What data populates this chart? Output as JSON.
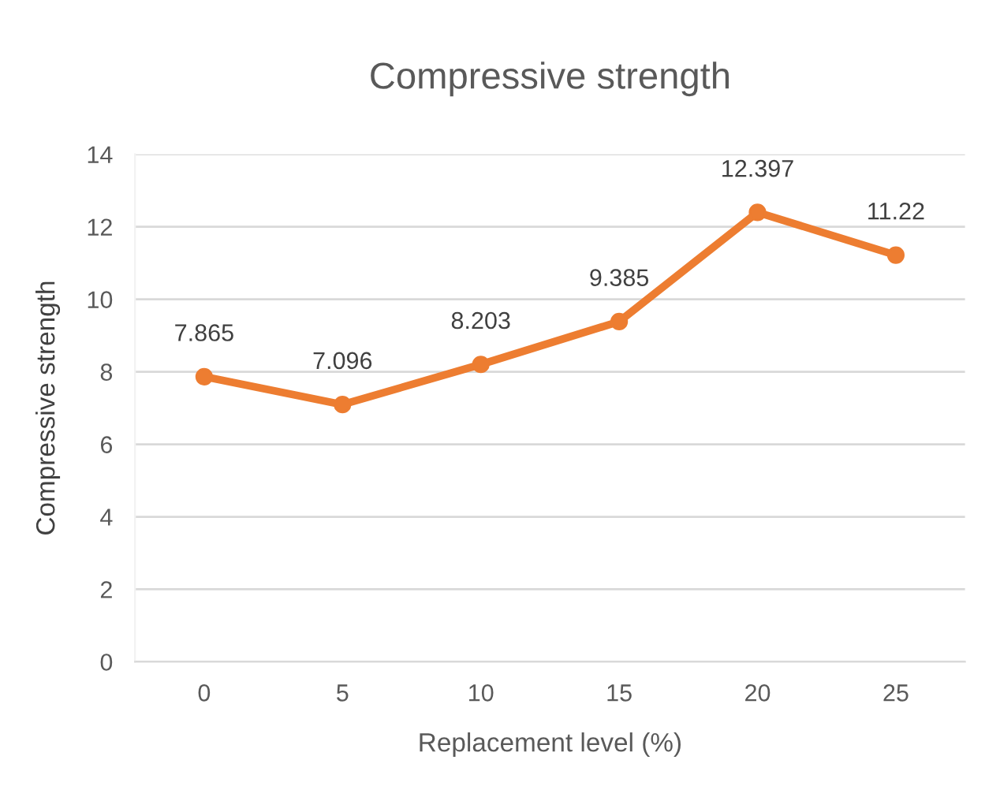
{
  "chart_data": {
    "type": "line",
    "title": "Compressive strength",
    "xlabel": "Replacement level (%)",
    "ylabel": "Compressive strength",
    "categories": [
      "0",
      "5",
      "10",
      "15",
      "20",
      "25"
    ],
    "series": [
      {
        "color": "#ed7d31",
        "values": [
          7.865,
          7.096,
          8.203,
          9.385,
          12.397,
          11.22
        ]
      }
    ],
    "ylim": [
      0,
      14
    ],
    "yticks": [
      0,
      2,
      4,
      6,
      8,
      10,
      12,
      14
    ],
    "grid": "y",
    "marker": "circle",
    "line_style": "solid",
    "data_labels": true
  }
}
